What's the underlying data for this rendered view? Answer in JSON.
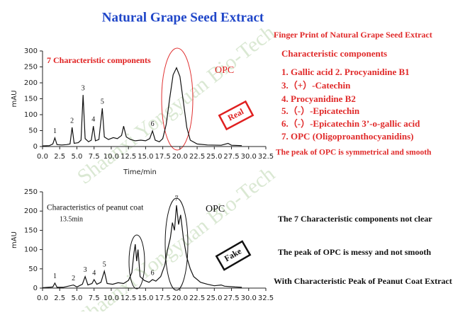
{
  "title": "Natural Grape Seed Extract",
  "watermark": "Shaanxi Yongyuan Bio-Tech",
  "right_panel": {
    "heading": "Finger Print of Natural Grape Seed Extract",
    "subheading": "Characteristic components",
    "items": [
      "1. Gallic acid    2. Procyanidine B1",
      "3.（+）-Catechin",
      "4. Procyanidine B2",
      "5.（-）-Epicatechin",
      "6.（-）-Epicatechin 3’-o-gallic acid",
      "7. OPC (Oligoproanthocyanidins)"
    ],
    "note": "The peak of OPC is symmetrical and smooth"
  },
  "bottom_notes": [
    "The 7 Characteristic components not clear",
    "The peak of OPC is messy and not smooth",
    "With Characteristic Peak of Peanut Coat Extract"
  ],
  "chart_data": [
    {
      "type": "line",
      "color": "#111111",
      "ylabel": "mAU",
      "xlabel": "Time/min",
      "x": [
        0,
        1,
        1.5,
        1.8,
        2.1,
        2.8,
        3.5,
        4.0,
        4.3,
        4.6,
        5.2,
        5.6,
        5.9,
        6.2,
        6.7,
        7.1,
        7.4,
        7.7,
        8.2,
        8.7,
        9.0,
        9.6,
        10.3,
        10.9,
        11.5,
        11.8,
        12.2,
        12.8,
        13.5,
        14.3,
        15.0,
        15.6,
        16.0,
        16.4,
        17.0,
        17.5,
        18.0,
        18.5,
        19.0,
        19.5,
        20.0,
        20.5,
        21.0,
        21.5,
        22.5,
        24,
        26,
        27,
        27.5,
        29
      ],
      "values": [
        2,
        3,
        8,
        27,
        6,
        5,
        6,
        8,
        60,
        10,
        12,
        20,
        162,
        25,
        15,
        20,
        64,
        18,
        22,
        120,
        30,
        22,
        28,
        25,
        35,
        64,
        30,
        22,
        18,
        20,
        18,
        25,
        49,
        20,
        15,
        25,
        70,
        150,
        225,
        247,
        220,
        140,
        60,
        20,
        8,
        5,
        4,
        10,
        4,
        3
      ],
      "xlim": [
        0,
        32.5
      ],
      "ylim": [
        0,
        300
      ],
      "xticks": [
        {
          "value": 0,
          "label": "0.0"
        },
        2.5,
        {
          "value": 5,
          "label": "5.0"
        },
        7.5,
        {
          "value": 10,
          "label": "10.0"
        },
        12.5,
        {
          "value": 15,
          "label": "15.0"
        },
        17.5,
        {
          "value": 20,
          "label": "20.0"
        },
        22.5,
        {
          "value": 25,
          "label": "25.0"
        },
        27.5,
        {
          "value": 30,
          "label": "30.0"
        },
        32.5
      ],
      "yticks": [
        0,
        50,
        100,
        150,
        200,
        250,
        300
      ],
      "peaks": [
        {
          "label": "1",
          "x": 1.8,
          "y": 27
        },
        {
          "label": "2",
          "x": 4.3,
          "y": 60
        },
        {
          "label": "3",
          "x": 5.9,
          "y": 162
        },
        {
          "label": "4",
          "x": 7.4,
          "y": 64
        },
        {
          "label": "5",
          "x": 8.7,
          "y": 120
        },
        {
          "label": "6",
          "x": 16.0,
          "y": 49
        }
      ],
      "annotations": [
        "7 Characteristic components",
        "OPC",
        "Real"
      ]
    },
    {
      "type": "line",
      "color": "#111111",
      "ylabel": "mAU",
      "x": [
        0,
        1.5,
        1.8,
        2.1,
        3,
        4.5,
        5,
        5.8,
        6.2,
        6.6,
        7.2,
        7.5,
        7.9,
        8.5,
        9.0,
        9.4,
        10.2,
        11,
        11.8,
        12.5,
        13.0,
        13.3,
        13.5,
        13.7,
        13.9,
        14.2,
        14.8,
        15.5,
        16.0,
        16.5,
        17.2,
        17.8,
        18.2,
        18.6,
        18.9,
        19.2,
        19.5,
        19.8,
        20.1,
        20.5,
        21,
        21.5,
        22,
        23,
        24,
        25,
        26,
        26.5,
        28,
        29
      ],
      "values": [
        1,
        3,
        13,
        2,
        2,
        8,
        3,
        10,
        30,
        8,
        12,
        22,
        10,
        15,
        44,
        12,
        10,
        14,
        12,
        20,
        40,
        90,
        114,
        70,
        100,
        30,
        20,
        15,
        22,
        18,
        30,
        60,
        100,
        130,
        170,
        150,
        215,
        165,
        190,
        130,
        80,
        50,
        30,
        15,
        10,
        6,
        8,
        5,
        3,
        2
      ],
      "xlim": [
        0,
        32.5
      ],
      "ylim": [
        0,
        250
      ],
      "xticks": [
        {
          "value": 0,
          "label": "0.0"
        },
        2.5,
        {
          "value": 5,
          "label": "5.0"
        },
        7.5,
        {
          "value": 10,
          "label": "10.0"
        },
        12.5,
        {
          "value": 15,
          "label": "15.0"
        },
        17.5,
        {
          "value": 20,
          "label": "20.0"
        },
        22.5,
        {
          "value": 25,
          "label": "25.0"
        },
        27.5,
        {
          "value": 30,
          "label": "30.0"
        },
        32.5
      ],
      "yticks": [
        0,
        50,
        100,
        150,
        200,
        250
      ],
      "peaks": [
        {
          "label": "1",
          "x": 1.8,
          "y": 13
        },
        {
          "label": "2",
          "x": 4.5,
          "y": 8
        },
        {
          "label": "3",
          "x": 6.2,
          "y": 30
        },
        {
          "label": "4",
          "x": 7.5,
          "y": 22
        },
        {
          "label": "5",
          "x": 9.0,
          "y": 44
        },
        {
          "label": "6",
          "x": 16.0,
          "y": 22
        },
        {
          "label": "7",
          "x": 19.5,
          "y": 215
        }
      ],
      "annotations": [
        "Characteristics of peanut coat",
        "13.5min",
        "OPC",
        "Fake"
      ]
    }
  ]
}
